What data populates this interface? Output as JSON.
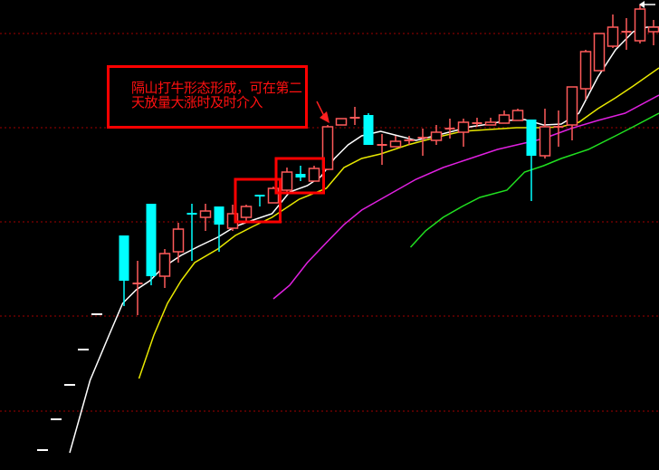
{
  "chart_data": {
    "type": "candlestick",
    "title": "",
    "xlabel": "",
    "ylabel": "",
    "ylim": [
      0,
      52
    ],
    "grid": {
      "on": true,
      "style": "dotted",
      "levels": [
        48.3,
        37.9,
        27.5,
        17.1,
        6.6
      ]
    },
    "colors": {
      "up": "#ff5a5a",
      "down": "#00ffff",
      "flat": "#ffffff",
      "grid": "#a00000",
      "background": "#000000"
    },
    "candles": [
      {
        "i": 0,
        "o": 2.3,
        "h": 2.3,
        "l": 2.3,
        "c": 2.3
      },
      {
        "i": 1,
        "o": 5.7,
        "h": 5.7,
        "l": 5.7,
        "c": 5.7
      },
      {
        "i": 2,
        "o": 9.5,
        "h": 9.5,
        "l": 9.5,
        "c": 9.5
      },
      {
        "i": 3,
        "o": 13.4,
        "h": 13.4,
        "l": 13.4,
        "c": 13.4
      },
      {
        "i": 4,
        "o": 17.3,
        "h": 17.3,
        "l": 17.3,
        "c": 17.3
      },
      {
        "i": 6,
        "o": 26.0,
        "h": 26.0,
        "l": 18.2,
        "c": 21.0
      },
      {
        "i": 7,
        "o": 20.7,
        "h": 23.2,
        "l": 17.2,
        "c": 20.7
      },
      {
        "i": 8,
        "o": 29.5,
        "h": 29.5,
        "l": 20.5,
        "c": 21.5
      },
      {
        "i": 9,
        "o": 21.5,
        "h": 24.5,
        "l": 20.2,
        "c": 24.0
      },
      {
        "i": 10,
        "o": 24.2,
        "h": 27.4,
        "l": 23.0,
        "c": 26.7
      },
      {
        "i": 11,
        "o": 28.4,
        "h": 29.5,
        "l": 23.2,
        "c": 28.3
      },
      {
        "i": 12,
        "o": 28.0,
        "h": 29.5,
        "l": 26.5,
        "c": 28.7
      },
      {
        "i": 13,
        "o": 29.2,
        "h": 29.2,
        "l": 24.2,
        "c": 27.2
      },
      {
        "i": 14,
        "o": 26.8,
        "h": 29.4,
        "l": 26.5,
        "c": 28.4
      },
      {
        "i": 15,
        "o": 28.0,
        "h": 29.4,
        "l": 27.5,
        "c": 29.2
      },
      {
        "i": 16,
        "o": 30.5,
        "h": 30.5,
        "l": 29.2,
        "c": 30.3
      },
      {
        "i": 17,
        "o": 29.6,
        "h": 31.4,
        "l": 29.6,
        "c": 31.2
      },
      {
        "i": 18,
        "o": 31.0,
        "h": 33.5,
        "l": 30.8,
        "c": 33.0
      },
      {
        "i": 19,
        "o": 32.8,
        "h": 33.7,
        "l": 32.0,
        "c": 32.4
      },
      {
        "i": 20,
        "o": 32.0,
        "h": 33.7,
        "l": 32.0,
        "c": 33.4
      },
      {
        "i": 21,
        "o": 33.3,
        "h": 38.2,
        "l": 33.2,
        "c": 38.0
      },
      {
        "i": 22,
        "o": 38.2,
        "h": 38.9,
        "l": 38.2,
        "c": 38.9
      },
      {
        "i": 23,
        "o": 39.0,
        "h": 40.2,
        "l": 38.2,
        "c": 39.0
      },
      {
        "i": 24,
        "o": 39.3,
        "h": 39.5,
        "l": 36.0,
        "c": 36.0
      },
      {
        "i": 25,
        "o": 36.0,
        "h": 37.2,
        "l": 33.8,
        "c": 36.0
      },
      {
        "i": 26,
        "o": 35.8,
        "h": 37.0,
        "l": 35.8,
        "c": 36.4
      },
      {
        "i": 27,
        "o": 36.5,
        "h": 37.0,
        "l": 36.0,
        "c": 36.5
      },
      {
        "i": 28,
        "o": 36.8,
        "h": 37.8,
        "l": 34.8,
        "c": 36.8
      },
      {
        "i": 29,
        "o": 36.5,
        "h": 38.2,
        "l": 36.0,
        "c": 37.4
      },
      {
        "i": 30,
        "o": 37.8,
        "h": 38.9,
        "l": 36.7,
        "c": 37.8
      },
      {
        "i": 31,
        "o": 37.4,
        "h": 38.9,
        "l": 35.8,
        "c": 38.5
      },
      {
        "i": 32,
        "o": 38.4,
        "h": 39.0,
        "l": 38.0,
        "c": 38.4
      },
      {
        "i": 33,
        "o": 38.2,
        "h": 39.0,
        "l": 38.2,
        "c": 38.5
      },
      {
        "i": 34,
        "o": 38.4,
        "h": 39.8,
        "l": 38.4,
        "c": 39.3
      },
      {
        "i": 35,
        "o": 38.7,
        "h": 40.0,
        "l": 38.7,
        "c": 39.8
      },
      {
        "i": 36,
        "o": 38.8,
        "h": 38.8,
        "l": 29.8,
        "c": 34.8
      },
      {
        "i": 37,
        "o": 34.8,
        "h": 40.0,
        "l": 34.5,
        "c": 38.0
      },
      {
        "i": 38,
        "o": 38.0,
        "h": 39.8,
        "l": 35.8,
        "c": 38.0
      },
      {
        "i": 39,
        "o": 38.2,
        "h": 42.4,
        "l": 36.5,
        "c": 42.4
      },
      {
        "i": 40,
        "o": 42.2,
        "h": 46.5,
        "l": 41.0,
        "c": 46.3
      },
      {
        "i": 41,
        "o": 44.2,
        "h": 48.3,
        "l": 44.2,
        "c": 48.3
      },
      {
        "i": 42,
        "o": 46.9,
        "h": 50.4,
        "l": 46.7,
        "c": 49.0
      },
      {
        "i": 43,
        "o": 48.5,
        "h": 50.0,
        "l": 46.5,
        "c": 48.5
      },
      {
        "i": 44,
        "o": 47.5,
        "h": 51.5,
        "l": 47.2,
        "c": 51.0
      },
      {
        "i": 45,
        "o": 48.5,
        "h": 49.8,
        "l": 47.0,
        "c": 49.0
      }
    ],
    "moving_averages": [
      {
        "color": "#ffffff",
        "points": [
          [
            2,
            2.0
          ],
          [
            3.5,
            10.0
          ],
          [
            4.9,
            15.0
          ],
          [
            5.9,
            18.5
          ],
          [
            6.9,
            20.0
          ],
          [
            7.9,
            21.0
          ],
          [
            8.9,
            22.5
          ],
          [
            10.2,
            23.8
          ],
          [
            11.5,
            24.8
          ],
          [
            12.9,
            25.8
          ],
          [
            14.2,
            27.0
          ],
          [
            15.5,
            27.7
          ],
          [
            16.9,
            28.4
          ],
          [
            18.2,
            30.8
          ],
          [
            19.5,
            31.5
          ],
          [
            20.5,
            32.5
          ],
          [
            21.5,
            34.5
          ],
          [
            22.5,
            36.0
          ],
          [
            23.5,
            37.0
          ],
          [
            24.9,
            37.5
          ],
          [
            26.2,
            37.0
          ],
          [
            27.5,
            36.5
          ],
          [
            28.9,
            37.0
          ],
          [
            30.2,
            37.5
          ],
          [
            31.5,
            38.0
          ],
          [
            32.9,
            38.3
          ],
          [
            34.2,
            38.7
          ],
          [
            35.5,
            38.8
          ],
          [
            36.9,
            38.2
          ],
          [
            38.2,
            38.3
          ],
          [
            39.5,
            39.5
          ],
          [
            40.9,
            43.5
          ],
          [
            42.2,
            46.5
          ],
          [
            43.5,
            48.5
          ],
          [
            44.5,
            49.0
          ],
          [
            45.4,
            49.0
          ]
        ]
      },
      {
        "color": "#e8e800",
        "points": [
          [
            7.1,
            10.2
          ],
          [
            8.2,
            15.0
          ],
          [
            9.2,
            18.5
          ],
          [
            10.2,
            21.0
          ],
          [
            11.2,
            23.0
          ],
          [
            12.9,
            24.5
          ],
          [
            14.2,
            26.0
          ],
          [
            15.5,
            27.0
          ],
          [
            16.9,
            28.0
          ],
          [
            18.9,
            30.0
          ],
          [
            20.9,
            31.2
          ],
          [
            22.2,
            33.5
          ],
          [
            23.5,
            34.5
          ],
          [
            24.9,
            35.0
          ],
          [
            26.9,
            36.0
          ],
          [
            28.9,
            36.8
          ],
          [
            30.9,
            37.5
          ],
          [
            32.9,
            37.7
          ],
          [
            34.9,
            37.9
          ],
          [
            36.9,
            37.9
          ],
          [
            38.2,
            38.0
          ],
          [
            39.5,
            38.5
          ],
          [
            40.9,
            40.0
          ],
          [
            42.2,
            41.2
          ],
          [
            43.5,
            42.5
          ],
          [
            45.4,
            44.5
          ]
        ]
      },
      {
        "color": "#e020e0",
        "points": [
          [
            17,
            19.0
          ],
          [
            18.2,
            20.5
          ],
          [
            19.5,
            23.0
          ],
          [
            20.9,
            25.2
          ],
          [
            22.2,
            27.2
          ],
          [
            23.5,
            28.8
          ],
          [
            25.5,
            30.5
          ],
          [
            27.5,
            32.2
          ],
          [
            29.5,
            33.5
          ],
          [
            31.5,
            34.5
          ],
          [
            33.5,
            35.5
          ],
          [
            35.5,
            36.2
          ],
          [
            36.9,
            36.7
          ],
          [
            38.9,
            37.8
          ],
          [
            40.9,
            38.7
          ],
          [
            42.9,
            39.5
          ],
          [
            45.4,
            41.5
          ]
        ]
      },
      {
        "color": "#20e020",
        "points": [
          [
            27.1,
            24.7
          ],
          [
            28.2,
            26.5
          ],
          [
            29.5,
            28.0
          ],
          [
            30.9,
            29.2
          ],
          [
            32.2,
            30.2
          ],
          [
            34.2,
            31.0
          ],
          [
            35.5,
            33.0
          ],
          [
            36.9,
            33.7
          ],
          [
            38.2,
            34.5
          ],
          [
            40.2,
            35.5
          ],
          [
            42.2,
            37.0
          ],
          [
            43.5,
            38.0
          ],
          [
            45.4,
            39.5
          ]
        ]
      }
    ],
    "highlight_boxes": [
      {
        "from": 14.2,
        "to": 17.5,
        "low": 27.5,
        "high": 32.2,
        "color": "#ff0000"
      },
      {
        "from": 17.2,
        "to": 20.7,
        "low": 30.7,
        "high": 34.5,
        "color": "#ff0000"
      }
    ],
    "annotation": {
      "text": "隔山打牛形态形成，可在第二天放量大涨时及时介入",
      "color": "#ff1010",
      "points_to_candle": 21
    }
  }
}
